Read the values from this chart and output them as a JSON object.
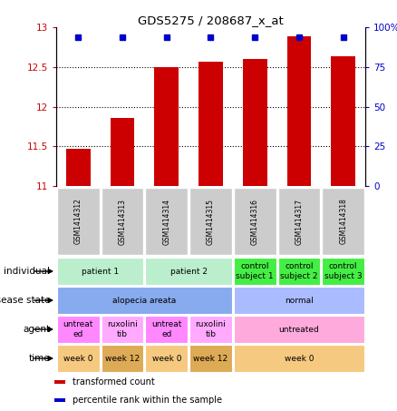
{
  "title": "GDS5275 / 208687_x_at",
  "samples": [
    "GSM1414312",
    "GSM1414313",
    "GSM1414314",
    "GSM1414315",
    "GSM1414316",
    "GSM1414317",
    "GSM1414318"
  ],
  "transformed_count": [
    11.47,
    11.86,
    12.5,
    12.57,
    12.6,
    12.88,
    12.63
  ],
  "percentile_rank": [
    97,
    97,
    97,
    97,
    97,
    97,
    97
  ],
  "ylim_left": [
    11,
    13
  ],
  "ylim_right": [
    0,
    100
  ],
  "yticks_left": [
    11,
    11.5,
    12,
    12.5,
    13
  ],
  "yticks_right": [
    0,
    25,
    50,
    75,
    100
  ],
  "bar_color": "#cc0000",
  "dot_color": "#0000cc",
  "annotation_rows": [
    {
      "label": "individual",
      "cells": [
        {
          "text": "patient 1",
          "span": 2,
          "color": "#bbeecc"
        },
        {
          "text": "patient 2",
          "span": 2,
          "color": "#bbeecc"
        },
        {
          "text": "control\nsubject 1",
          "span": 1,
          "color": "#44ee44"
        },
        {
          "text": "control\nsubject 2",
          "span": 1,
          "color": "#44ee44"
        },
        {
          "text": "control\nsubject 3",
          "span": 1,
          "color": "#44ee44"
        }
      ]
    },
    {
      "label": "disease state",
      "cells": [
        {
          "text": "alopecia areata",
          "span": 4,
          "color": "#88aaee"
        },
        {
          "text": "normal",
          "span": 3,
          "color": "#aabbff"
        }
      ]
    },
    {
      "label": "agent",
      "cells": [
        {
          "text": "untreat\ned",
          "span": 1,
          "color": "#ff88ff"
        },
        {
          "text": "ruxolini\ntib",
          "span": 1,
          "color": "#ffaaff"
        },
        {
          "text": "untreat\ned",
          "span": 1,
          "color": "#ff88ff"
        },
        {
          "text": "ruxolini\ntib",
          "span": 1,
          "color": "#ffaaff"
        },
        {
          "text": "untreated",
          "span": 3,
          "color": "#ffaadd"
        }
      ]
    },
    {
      "label": "time",
      "cells": [
        {
          "text": "week 0",
          "span": 1,
          "color": "#f5c97f"
        },
        {
          "text": "week 12",
          "span": 1,
          "color": "#ddaa55"
        },
        {
          "text": "week 0",
          "span": 1,
          "color": "#f5c97f"
        },
        {
          "text": "week 12",
          "span": 1,
          "color": "#ddaa55"
        },
        {
          "text": "week 0",
          "span": 3,
          "color": "#f5c97f"
        }
      ]
    }
  ],
  "legend_items": [
    {
      "color": "#cc0000",
      "label": "transformed count"
    },
    {
      "color": "#0000cc",
      "label": "percentile rank within the sample"
    }
  ]
}
